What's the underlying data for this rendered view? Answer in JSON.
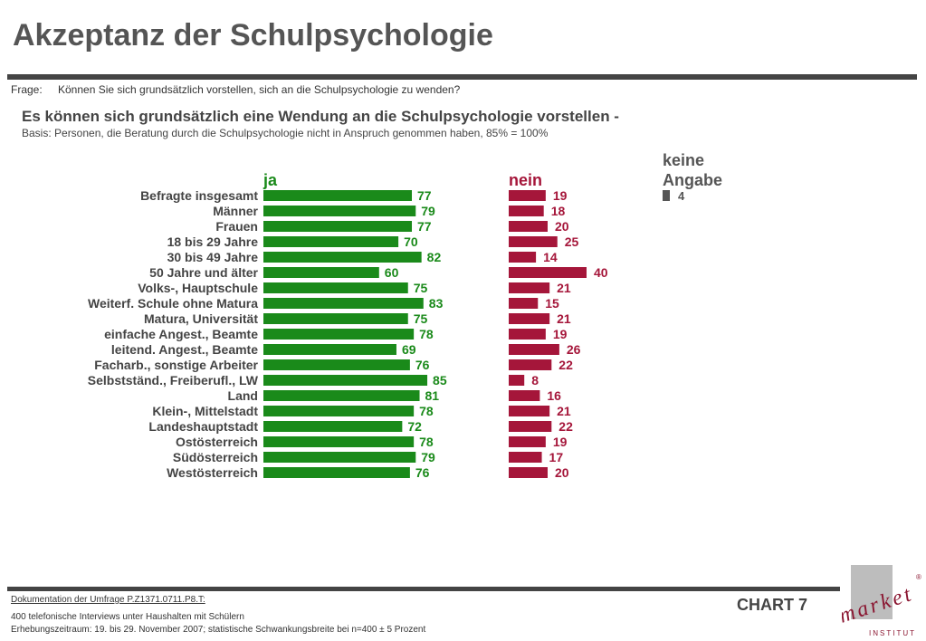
{
  "header": {
    "title": "Akzeptanz der Schulpsychologie",
    "frage_label": "Frage:",
    "frage_text": "Können Sie sich grundsätzlich vorstellen, sich an die Schulpsychologie zu wenden?",
    "subtitle": "Es können sich grundsätzlich eine Wendung an die Schulpsychologie vorstellen -",
    "basis": "Basis: Personen, die Beratung durch die Schulpsychologie nicht in Anspruch genommen haben, 85% = 100%"
  },
  "chart_data": {
    "type": "bar",
    "orientation": "horizontal",
    "series": [
      {
        "name": "ja",
        "color": "#1a8a1a",
        "values": [
          77,
          79,
          77,
          70,
          82,
          60,
          75,
          83,
          75,
          78,
          69,
          76,
          85,
          81,
          78,
          72,
          78,
          79,
          76
        ]
      },
      {
        "name": "nein",
        "color": "#a5163a",
        "values": [
          19,
          18,
          20,
          25,
          14,
          40,
          21,
          15,
          21,
          19,
          26,
          22,
          8,
          16,
          21,
          22,
          19,
          17,
          20
        ]
      },
      {
        "name_lines": [
          "keine",
          "Angabe"
        ],
        "color": "#555555",
        "values": [
          4,
          null,
          null,
          null,
          null,
          null,
          null,
          null,
          null,
          null,
          null,
          null,
          null,
          null,
          null,
          null,
          null,
          null,
          null
        ]
      }
    ],
    "categories": [
      "Befragte insgesamt",
      "Männer",
      "Frauen",
      "18 bis 29 Jahre",
      "30 bis 49 Jahre",
      "50 Jahre und älter",
      "Volks-, Hauptschule",
      "Weiterf. Schule ohne Matura",
      "Matura, Universität",
      "einfache Angest., Beamte",
      "leitend. Angest., Beamte",
      "Facharb., sonstige Arbeiter",
      "Selbstständ., Freiberufl., LW",
      "Land",
      "Klein-, Mittelstadt",
      "Landeshauptstadt",
      "Ostösterreich",
      "Südösterreich",
      "Westösterreich"
    ],
    "groups": [
      [
        0
      ],
      [
        1,
        2
      ],
      [
        3,
        4,
        5
      ],
      [
        6,
        7,
        8
      ],
      [
        9,
        10,
        11,
        12
      ],
      [
        13,
        14,
        15
      ],
      [
        16,
        17,
        18
      ]
    ],
    "unit": "%"
  },
  "footer": {
    "doc_link": "Dokumentation der Umfrage P.Z1371.0711.P8.T:",
    "note1": "400 telefonische Interviews unter Haushalten mit Schülern",
    "note2": "Erhebungszeitraum: 19. bis 29. November 2007; statistische Schwankungsbreite bei n=400 ± 5 Prozent",
    "chart_label": "CHART 7"
  },
  "logo": {
    "text": "market",
    "trademark": "®",
    "subtext": "INSTITUT",
    "color": "#8a1530",
    "box_color": "#bdbdbd"
  }
}
